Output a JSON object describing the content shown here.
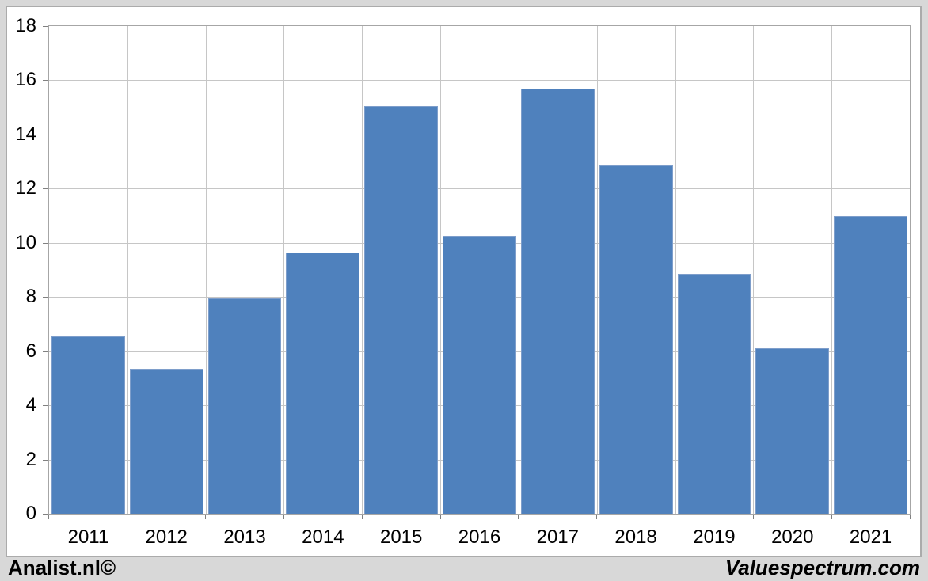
{
  "chart_data": {
    "type": "bar",
    "title": "",
    "xlabel": "",
    "ylabel": "",
    "categories": [
      "2011",
      "2012",
      "2013",
      "2014",
      "2015",
      "2016",
      "2017",
      "2018",
      "2019",
      "2020",
      "2021"
    ],
    "values": [
      6.55,
      5.35,
      7.95,
      9.65,
      15.05,
      10.25,
      15.7,
      12.85,
      8.85,
      6.1,
      11.0
    ],
    "ylim": [
      0,
      18
    ],
    "yticks": [
      0,
      2,
      4,
      6,
      8,
      10,
      12,
      14,
      16,
      18
    ],
    "grid": true,
    "legend_position": "none",
    "bar_color": "#4f81bd",
    "bar_edge_color": "#7e9ecb",
    "gridline_color": "#c6c6c6",
    "plot_border_color": "#a6a6a6",
    "tick_color": "#808080",
    "label_color": "#000000",
    "plot_background": "#ffffff",
    "frame_background": "#d8d8d8"
  },
  "footer": {
    "left": "Analist.nl©",
    "right": "Valuespectrum.com"
  }
}
